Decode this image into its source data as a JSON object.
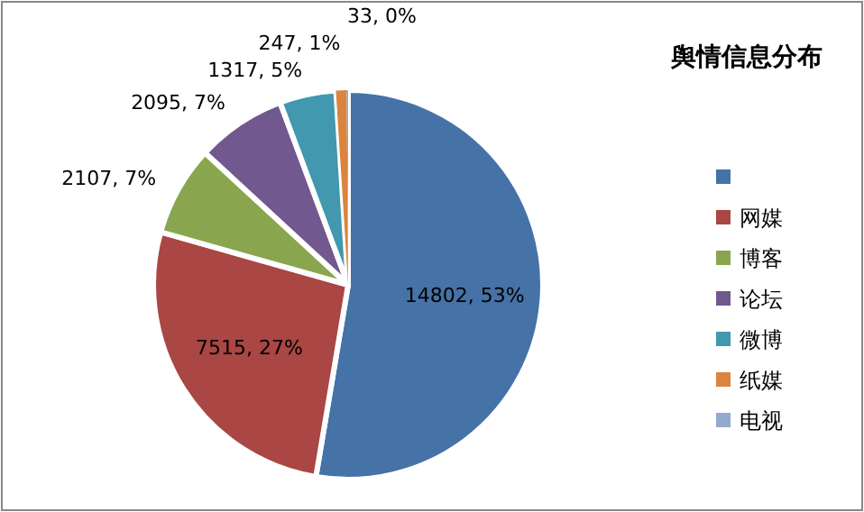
{
  "chart_data": {
    "type": "pie",
    "title": "舆情信息分布",
    "categories": [
      null,
      "网媒",
      "博客",
      "论坛",
      "微博",
      "纸媒",
      "电视"
    ],
    "values": [
      14802,
      7515,
      2107,
      2095,
      1317,
      247,
      33
    ],
    "colors": [
      "#4572a7",
      "#aa4643",
      "#89a54e",
      "#71588f",
      "#4198af",
      "#db843d",
      "#93a9cf"
    ],
    "value_labels": [
      "14802, 53%",
      "7515, 27%",
      "2107, 7%",
      "2095, 7%",
      "1317, 5%",
      "247, 1%",
      "33, 0%"
    ],
    "legend": "right"
  }
}
